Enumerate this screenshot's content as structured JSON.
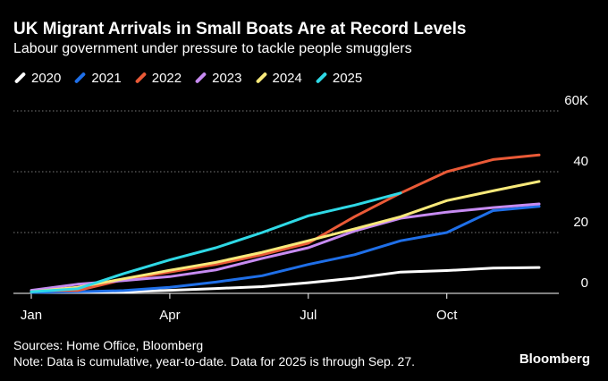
{
  "header": {
    "title": "UK Migrant Arrivals in Small Boats Are at Record Levels",
    "subtitle": "Labour government under pressure to tackle people smugglers"
  },
  "footer": {
    "sources": "Sources: Home Office, Bloomberg",
    "note": "Note: Data is cumulative, year-to-date. Data for 2025 is through Sep. 27.",
    "brand": "Bloomberg"
  },
  "chart_data": {
    "type": "line",
    "title": "UK Migrant Arrivals in Small Boats Are at Record Levels",
    "subtitle": "Labour government under pressure to tackle people smugglers",
    "xlabel": "",
    "ylabel": "",
    "x_unit": "month",
    "x_ticks": [
      {
        "label": "Jan",
        "value": 1
      },
      {
        "label": "Apr",
        "value": 4
      },
      {
        "label": "Jul",
        "value": 7
      },
      {
        "label": "Oct",
        "value": 10
      }
    ],
    "xlim": [
      1,
      12
    ],
    "y_ticks": [
      {
        "label": "0",
        "value": 0
      },
      {
        "label": "20",
        "value": 20
      },
      {
        "label": "40",
        "value": 40
      },
      {
        "label": "60K",
        "value": 60
      }
    ],
    "ylim": [
      0,
      60
    ],
    "grid": "horizontal dotted",
    "legend_position": "top-left",
    "series": [
      {
        "name": "2020",
        "color": "#ffffff",
        "x": [
          1,
          2,
          3,
          4,
          5,
          6,
          7,
          8,
          9,
          10,
          11,
          12
        ],
        "values": [
          0.3,
          0.3,
          0.5,
          1.0,
          1.6,
          2.2,
          3.5,
          5.0,
          7.0,
          7.5,
          8.3,
          8.5
        ]
      },
      {
        "name": "2021",
        "color": "#1f6fe8",
        "x": [
          1,
          2,
          3,
          4,
          5,
          6,
          7,
          8,
          9,
          10,
          11,
          12
        ],
        "values": [
          0.3,
          0.5,
          0.9,
          2.0,
          3.7,
          5.8,
          9.5,
          12.7,
          17.3,
          20.0,
          27.2,
          28.6
        ]
      },
      {
        "name": "2022",
        "color": "#ea5a37",
        "x": [
          1,
          2,
          3,
          4,
          5,
          6,
          7,
          8,
          9,
          10,
          11,
          12
        ],
        "values": [
          0.9,
          0.9,
          4.5,
          7.0,
          9.5,
          12.7,
          16.5,
          25.2,
          33.0,
          40.0,
          44.0,
          45.5
        ]
      },
      {
        "name": "2023",
        "color": "#c78bf2",
        "x": [
          1,
          2,
          3,
          4,
          5,
          6,
          7,
          8,
          9,
          10,
          11,
          12
        ],
        "values": [
          1.0,
          3.0,
          4.2,
          5.5,
          7.7,
          11.5,
          15.0,
          20.5,
          24.7,
          26.7,
          28.2,
          29.4
        ]
      },
      {
        "name": "2024",
        "color": "#f8e97a",
        "x": [
          1,
          2,
          3,
          4,
          5,
          6,
          7,
          8,
          9,
          10,
          11,
          12
        ],
        "values": [
          0.5,
          2.0,
          4.8,
          7.6,
          10.2,
          13.5,
          17.3,
          21.2,
          25.2,
          30.5,
          33.7,
          36.8
        ]
      },
      {
        "name": "2025",
        "color": "#2fd9e6",
        "x": [
          1,
          2,
          3,
          4,
          5,
          6,
          7,
          8,
          9
        ],
        "values": [
          0.5,
          1.5,
          6.5,
          11.0,
          15.0,
          20.0,
          25.5,
          29.0,
          33.0
        ]
      }
    ]
  }
}
